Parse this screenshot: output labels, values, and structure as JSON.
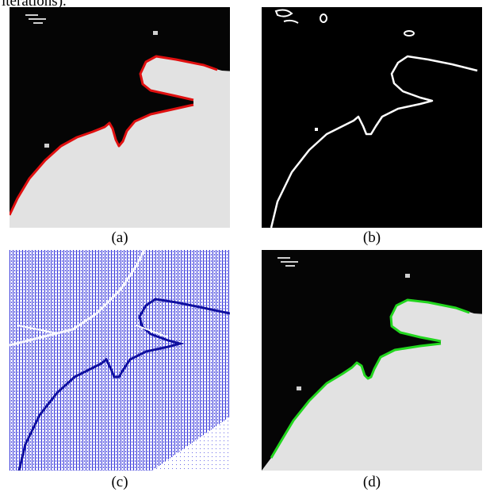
{
  "fragment_text": "iterations).",
  "panels": [
    {
      "id": "a",
      "caption": "(a)",
      "content": "grayscale image with red contour"
    },
    {
      "id": "b",
      "caption": "(b)",
      "content": "edge map on black background"
    },
    {
      "id": "c",
      "caption": "(c)",
      "content": "blue vector field"
    },
    {
      "id": "d",
      "caption": "(d)",
      "content": "grayscale image with green contour"
    }
  ],
  "colors": {
    "contour_initial": "#e01010",
    "contour_final": "#22d61e",
    "vector_field": "#1a1ad0",
    "edge": "#ffffff",
    "background_dark": "#050505",
    "object_gray": "#e2e2e2"
  }
}
